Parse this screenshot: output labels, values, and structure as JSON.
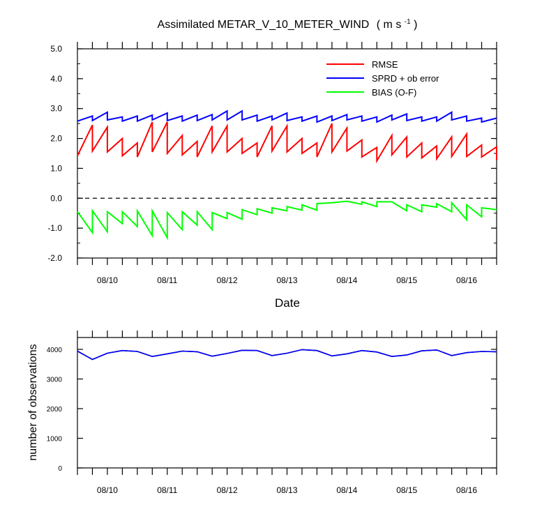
{
  "chart_data": [
    {
      "type": "line",
      "title": "Assimilated METAR_V_10_METER_WIND",
      "title_units": "( m s",
      "title_units_sup": "-1",
      "title_units_end": " )",
      "xlabel": "Date",
      "ylabel": "",
      "ylim": [
        -2.0,
        5.0
      ],
      "yticks": [
        "-2.0",
        "-1.0",
        "0.0",
        "1.0",
        "2.0",
        "3.0",
        "4.0",
        "5.0"
      ],
      "ytick_values": [
        -2,
        -1,
        0,
        1,
        2,
        3,
        4,
        5
      ],
      "xlim": [
        "08/09 12:00",
        "08/16 12:00"
      ],
      "xtick_labels": [
        "08/10",
        "08/11",
        "08/12",
        "08/13",
        "08/14",
        "08/15",
        "08/16"
      ],
      "xtick_dates": [
        "08/10 00:00",
        "08/11 00:00",
        "08/12 00:00",
        "08/13 00:00",
        "08/14 00:00",
        "08/15 00:00",
        "08/16 00:00"
      ],
      "reference_line": {
        "y": 0.0,
        "style": "dashed"
      },
      "legend": {
        "placement": "top-right"
      },
      "series": [
        {
          "name": "RMSE",
          "color": "#ff0000",
          "points": [
            [
              "08/09 12:00",
              1.42
            ],
            [
              "08/09 18:00",
              2.45
            ],
            [
              "08/09 18:00",
              1.58
            ],
            [
              "08/10 00:00",
              2.38
            ],
            [
              "08/10 00:00",
              1.55
            ],
            [
              "08/10 06:00",
              2.0
            ],
            [
              "08/10 06:00",
              1.42
            ],
            [
              "08/10 12:00",
              1.85
            ],
            [
              "08/10 12:00",
              1.38
            ],
            [
              "08/10 18:00",
              2.55
            ],
            [
              "08/10 18:00",
              1.55
            ],
            [
              "08/11 00:00",
              2.55
            ],
            [
              "08/11 00:00",
              1.5
            ],
            [
              "08/11 06:00",
              2.1
            ],
            [
              "08/11 06:00",
              1.45
            ],
            [
              "08/11 12:00",
              1.9
            ],
            [
              "08/11 12:00",
              1.38
            ],
            [
              "08/11 18:00",
              2.42
            ],
            [
              "08/11 18:00",
              1.55
            ],
            [
              "08/12 00:00",
              2.42
            ],
            [
              "08/12 00:00",
              1.55
            ],
            [
              "08/12 06:00",
              2.0
            ],
            [
              "08/12 06:00",
              1.5
            ],
            [
              "08/12 12:00",
              1.85
            ],
            [
              "08/12 12:00",
              1.38
            ],
            [
              "08/12 18:00",
              2.42
            ],
            [
              "08/12 18:00",
              1.58
            ],
            [
              "08/13 00:00",
              2.42
            ],
            [
              "08/13 00:00",
              1.55
            ],
            [
              "08/13 06:00",
              2.0
            ],
            [
              "08/13 06:00",
              1.5
            ],
            [
              "08/13 12:00",
              1.85
            ],
            [
              "08/13 12:00",
              1.38
            ],
            [
              "08/13 18:00",
              2.5
            ],
            [
              "08/13 18:00",
              1.55
            ],
            [
              "08/14 00:00",
              2.35
            ],
            [
              "08/14 00:00",
              1.58
            ],
            [
              "08/14 06:00",
              1.95
            ],
            [
              "08/14 06:00",
              1.38
            ],
            [
              "08/14 12:00",
              1.7
            ],
            [
              "08/14 12:00",
              1.25
            ],
            [
              "08/14 18:00",
              2.1
            ],
            [
              "08/14 18:00",
              1.45
            ],
            [
              "08/15 00:00",
              2.05
            ],
            [
              "08/15 00:00",
              1.38
            ],
            [
              "08/15 06:00",
              1.85
            ],
            [
              "08/15 06:00",
              1.35
            ],
            [
              "08/15 12:00",
              1.75
            ],
            [
              "08/15 12:00",
              1.32
            ],
            [
              "08/15 18:00",
              2.05
            ],
            [
              "08/15 18:00",
              1.4
            ],
            [
              "08/16 00:00",
              2.15
            ],
            [
              "08/16 00:00",
              1.4
            ],
            [
              "08/16 06:00",
              1.78
            ],
            [
              "08/16 06:00",
              1.38
            ],
            [
              "08/16 12:00",
              1.72
            ],
            [
              "08/16 12:00",
              1.28
            ]
          ]
        },
        {
          "name": "SPRD + ob error",
          "color": "#0000ff",
          "points": [
            [
              "08/09 12:00",
              2.58
            ],
            [
              "08/09 18:00",
              2.75
            ],
            [
              "08/09 18:00",
              2.6
            ],
            [
              "08/10 00:00",
              2.88
            ],
            [
              "08/10 00:00",
              2.62
            ],
            [
              "08/10 06:00",
              2.72
            ],
            [
              "08/10 06:00",
              2.58
            ],
            [
              "08/10 12:00",
              2.75
            ],
            [
              "08/10 12:00",
              2.58
            ],
            [
              "08/10 18:00",
              2.78
            ],
            [
              "08/10 18:00",
              2.62
            ],
            [
              "08/11 00:00",
              2.85
            ],
            [
              "08/11 00:00",
              2.6
            ],
            [
              "08/11 06:00",
              2.75
            ],
            [
              "08/11 06:00",
              2.58
            ],
            [
              "08/11 12:00",
              2.78
            ],
            [
              "08/11 12:00",
              2.6
            ],
            [
              "08/11 18:00",
              2.8
            ],
            [
              "08/11 18:00",
              2.62
            ],
            [
              "08/12 00:00",
              2.92
            ],
            [
              "08/12 00:00",
              2.62
            ],
            [
              "08/12 06:00",
              2.92
            ],
            [
              "08/12 06:00",
              2.62
            ],
            [
              "08/12 12:00",
              2.78
            ],
            [
              "08/12 12:00",
              2.58
            ],
            [
              "08/12 18:00",
              2.75
            ],
            [
              "08/12 18:00",
              2.62
            ],
            [
              "08/13 00:00",
              2.85
            ],
            [
              "08/13 00:00",
              2.6
            ],
            [
              "08/13 06:00",
              2.72
            ],
            [
              "08/13 06:00",
              2.58
            ],
            [
              "08/13 12:00",
              2.75
            ],
            [
              "08/13 12:00",
              2.55
            ],
            [
              "08/13 18:00",
              2.75
            ],
            [
              "08/13 18:00",
              2.6
            ],
            [
              "08/14 00:00",
              2.8
            ],
            [
              "08/14 00:00",
              2.62
            ],
            [
              "08/14 06:00",
              2.75
            ],
            [
              "08/14 06:00",
              2.58
            ],
            [
              "08/14 12:00",
              2.72
            ],
            [
              "08/14 12:00",
              2.55
            ],
            [
              "08/14 18:00",
              2.78
            ],
            [
              "08/14 18:00",
              2.62
            ],
            [
              "08/15 00:00",
              2.82
            ],
            [
              "08/15 00:00",
              2.6
            ],
            [
              "08/15 06:00",
              2.72
            ],
            [
              "08/15 06:00",
              2.58
            ],
            [
              "08/15 12:00",
              2.72
            ],
            [
              "08/15 12:00",
              2.58
            ],
            [
              "08/15 18:00",
              2.88
            ],
            [
              "08/15 18:00",
              2.62
            ],
            [
              "08/16 00:00",
              2.75
            ],
            [
              "08/16 00:00",
              2.58
            ],
            [
              "08/16 06:00",
              2.68
            ],
            [
              "08/16 06:00",
              2.55
            ],
            [
              "08/16 12:00",
              2.68
            ]
          ]
        },
        {
          "name": "BIAS (O-F)",
          "color": "#00ff00",
          "points": [
            [
              "08/09 12:00",
              -0.45
            ],
            [
              "08/09 18:00",
              -1.15
            ],
            [
              "08/09 18:00",
              -0.42
            ],
            [
              "08/10 00:00",
              -1.12
            ],
            [
              "08/10 00:00",
              -0.45
            ],
            [
              "08/10 06:00",
              -0.85
            ],
            [
              "08/10 06:00",
              -0.45
            ],
            [
              "08/10 12:00",
              -0.95
            ],
            [
              "08/10 12:00",
              -0.42
            ],
            [
              "08/10 18:00",
              -1.25
            ],
            [
              "08/10 18:00",
              -0.42
            ],
            [
              "08/11 00:00",
              -1.32
            ],
            [
              "08/11 00:00",
              -0.48
            ],
            [
              "08/11 06:00",
              -1.05
            ],
            [
              "08/11 06:00",
              -0.45
            ],
            [
              "08/11 12:00",
              -0.9
            ],
            [
              "08/11 12:00",
              -0.45
            ],
            [
              "08/11 18:00",
              -1.05
            ],
            [
              "08/11 18:00",
              -0.48
            ],
            [
              "08/12 00:00",
              -0.68
            ],
            [
              "08/12 00:00",
              -0.48
            ],
            [
              "08/12 06:00",
              -0.7
            ],
            [
              "08/12 06:00",
              -0.38
            ],
            [
              "08/12 12:00",
              -0.55
            ],
            [
              "08/12 12:00",
              -0.35
            ],
            [
              "08/12 18:00",
              -0.5
            ],
            [
              "08/12 18:00",
              -0.32
            ],
            [
              "08/13 00:00",
              -0.42
            ],
            [
              "08/13 00:00",
              -0.28
            ],
            [
              "08/13 06:00",
              -0.4
            ],
            [
              "08/13 06:00",
              -0.22
            ],
            [
              "08/13 12:00",
              -0.4
            ],
            [
              "08/13 12:00",
              -0.18
            ],
            [
              "08/13 18:00",
              -0.15
            ],
            [
              "08/14 00:00",
              -0.1
            ],
            [
              "08/14 06:00",
              -0.2
            ],
            [
              "08/14 06:00",
              -0.12
            ],
            [
              "08/14 12:00",
              -0.28
            ],
            [
              "08/14 12:00",
              -0.12
            ],
            [
              "08/14 18:00",
              -0.12
            ],
            [
              "08/15 00:00",
              -0.42
            ],
            [
              "08/15 00:00",
              -0.22
            ],
            [
              "08/15 06:00",
              -0.45
            ],
            [
              "08/15 06:00",
              -0.22
            ],
            [
              "08/15 12:00",
              -0.3
            ],
            [
              "08/15 12:00",
              -0.18
            ],
            [
              "08/15 18:00",
              -0.45
            ],
            [
              "08/15 18:00",
              -0.15
            ],
            [
              "08/16 00:00",
              -0.72
            ],
            [
              "08/16 00:00",
              -0.22
            ],
            [
              "08/16 06:00",
              -0.62
            ],
            [
              "08/16 06:00",
              -0.32
            ],
            [
              "08/16 12:00",
              -0.38
            ]
          ]
        }
      ]
    },
    {
      "type": "line",
      "title": "",
      "xlabel": "",
      "ylabel": "number of observations",
      "ylim": [
        0,
        4400
      ],
      "yticks": [
        "0",
        "1000",
        "2000",
        "3000",
        "4000"
      ],
      "ytick_values": [
        0,
        1000,
        2000,
        3000,
        4000
      ],
      "xlim": [
        "08/09 12:00",
        "08/16 12:00"
      ],
      "xtick_labels": [
        "08/10",
        "08/11",
        "08/12",
        "08/13",
        "08/14",
        "08/15",
        "08/16"
      ],
      "xtick_dates": [
        "08/10 00:00",
        "08/11 00:00",
        "08/12 00:00",
        "08/13 00:00",
        "08/14 00:00",
        "08/15 00:00",
        "08/16 00:00"
      ],
      "series": [
        {
          "color": "#000000",
          "points": [
            [
              "08/09 12:00",
              3940
            ],
            [
              "08/09 18:00",
              3660
            ],
            [
              "08/10 00:00",
              3870
            ],
            [
              "08/10 06:00",
              3960
            ],
            [
              "08/10 12:00",
              3930
            ],
            [
              "08/10 18:00",
              3760
            ],
            [
              "08/11 00:00",
              3850
            ],
            [
              "08/11 06:00",
              3940
            ],
            [
              "08/11 12:00",
              3920
            ],
            [
              "08/11 18:00",
              3770
            ],
            [
              "08/12 00:00",
              3860
            ],
            [
              "08/12 06:00",
              3970
            ],
            [
              "08/12 12:00",
              3960
            ],
            [
              "08/12 18:00",
              3790
            ],
            [
              "08/13 00:00",
              3870
            ],
            [
              "08/13 06:00",
              3990
            ],
            [
              "08/13 12:00",
              3960
            ],
            [
              "08/13 18:00",
              3780
            ],
            [
              "08/14 00:00",
              3850
            ],
            [
              "08/14 06:00",
              3960
            ],
            [
              "08/14 12:00",
              3910
            ],
            [
              "08/14 18:00",
              3760
            ],
            [
              "08/15 00:00",
              3810
            ],
            [
              "08/15 06:00",
              3950
            ],
            [
              "08/15 12:00",
              3980
            ],
            [
              "08/15 18:00",
              3790
            ],
            [
              "08/16 00:00",
              3890
            ],
            [
              "08/16 06:00",
              3930
            ],
            [
              "08/16 12:00",
              3920
            ]
          ]
        },
        {
          "color": "#0000ff",
          "points": [
            [
              "08/09 12:00",
              3940
            ],
            [
              "08/09 18:00",
              3660
            ],
            [
              "08/10 00:00",
              3870
            ],
            [
              "08/10 06:00",
              3960
            ],
            [
              "08/10 12:00",
              3930
            ],
            [
              "08/10 18:00",
              3760
            ],
            [
              "08/11 00:00",
              3850
            ],
            [
              "08/11 06:00",
              3940
            ],
            [
              "08/11 12:00",
              3920
            ],
            [
              "08/11 18:00",
              3770
            ],
            [
              "08/12 00:00",
              3860
            ],
            [
              "08/12 06:00",
              3970
            ],
            [
              "08/12 12:00",
              3960
            ],
            [
              "08/12 18:00",
              3790
            ],
            [
              "08/13 00:00",
              3870
            ],
            [
              "08/13 06:00",
              3990
            ],
            [
              "08/13 12:00",
              3960
            ],
            [
              "08/13 18:00",
              3780
            ],
            [
              "08/14 00:00",
              3850
            ],
            [
              "08/14 06:00",
              3960
            ],
            [
              "08/14 12:00",
              3910
            ],
            [
              "08/14 18:00",
              3760
            ],
            [
              "08/15 00:00",
              3810
            ],
            [
              "08/15 06:00",
              3950
            ],
            [
              "08/15 12:00",
              3980
            ],
            [
              "08/15 18:00",
              3790
            ],
            [
              "08/16 00:00",
              3890
            ],
            [
              "08/16 06:00",
              3930
            ],
            [
              "08/16 12:00",
              3920
            ]
          ]
        }
      ]
    }
  ]
}
